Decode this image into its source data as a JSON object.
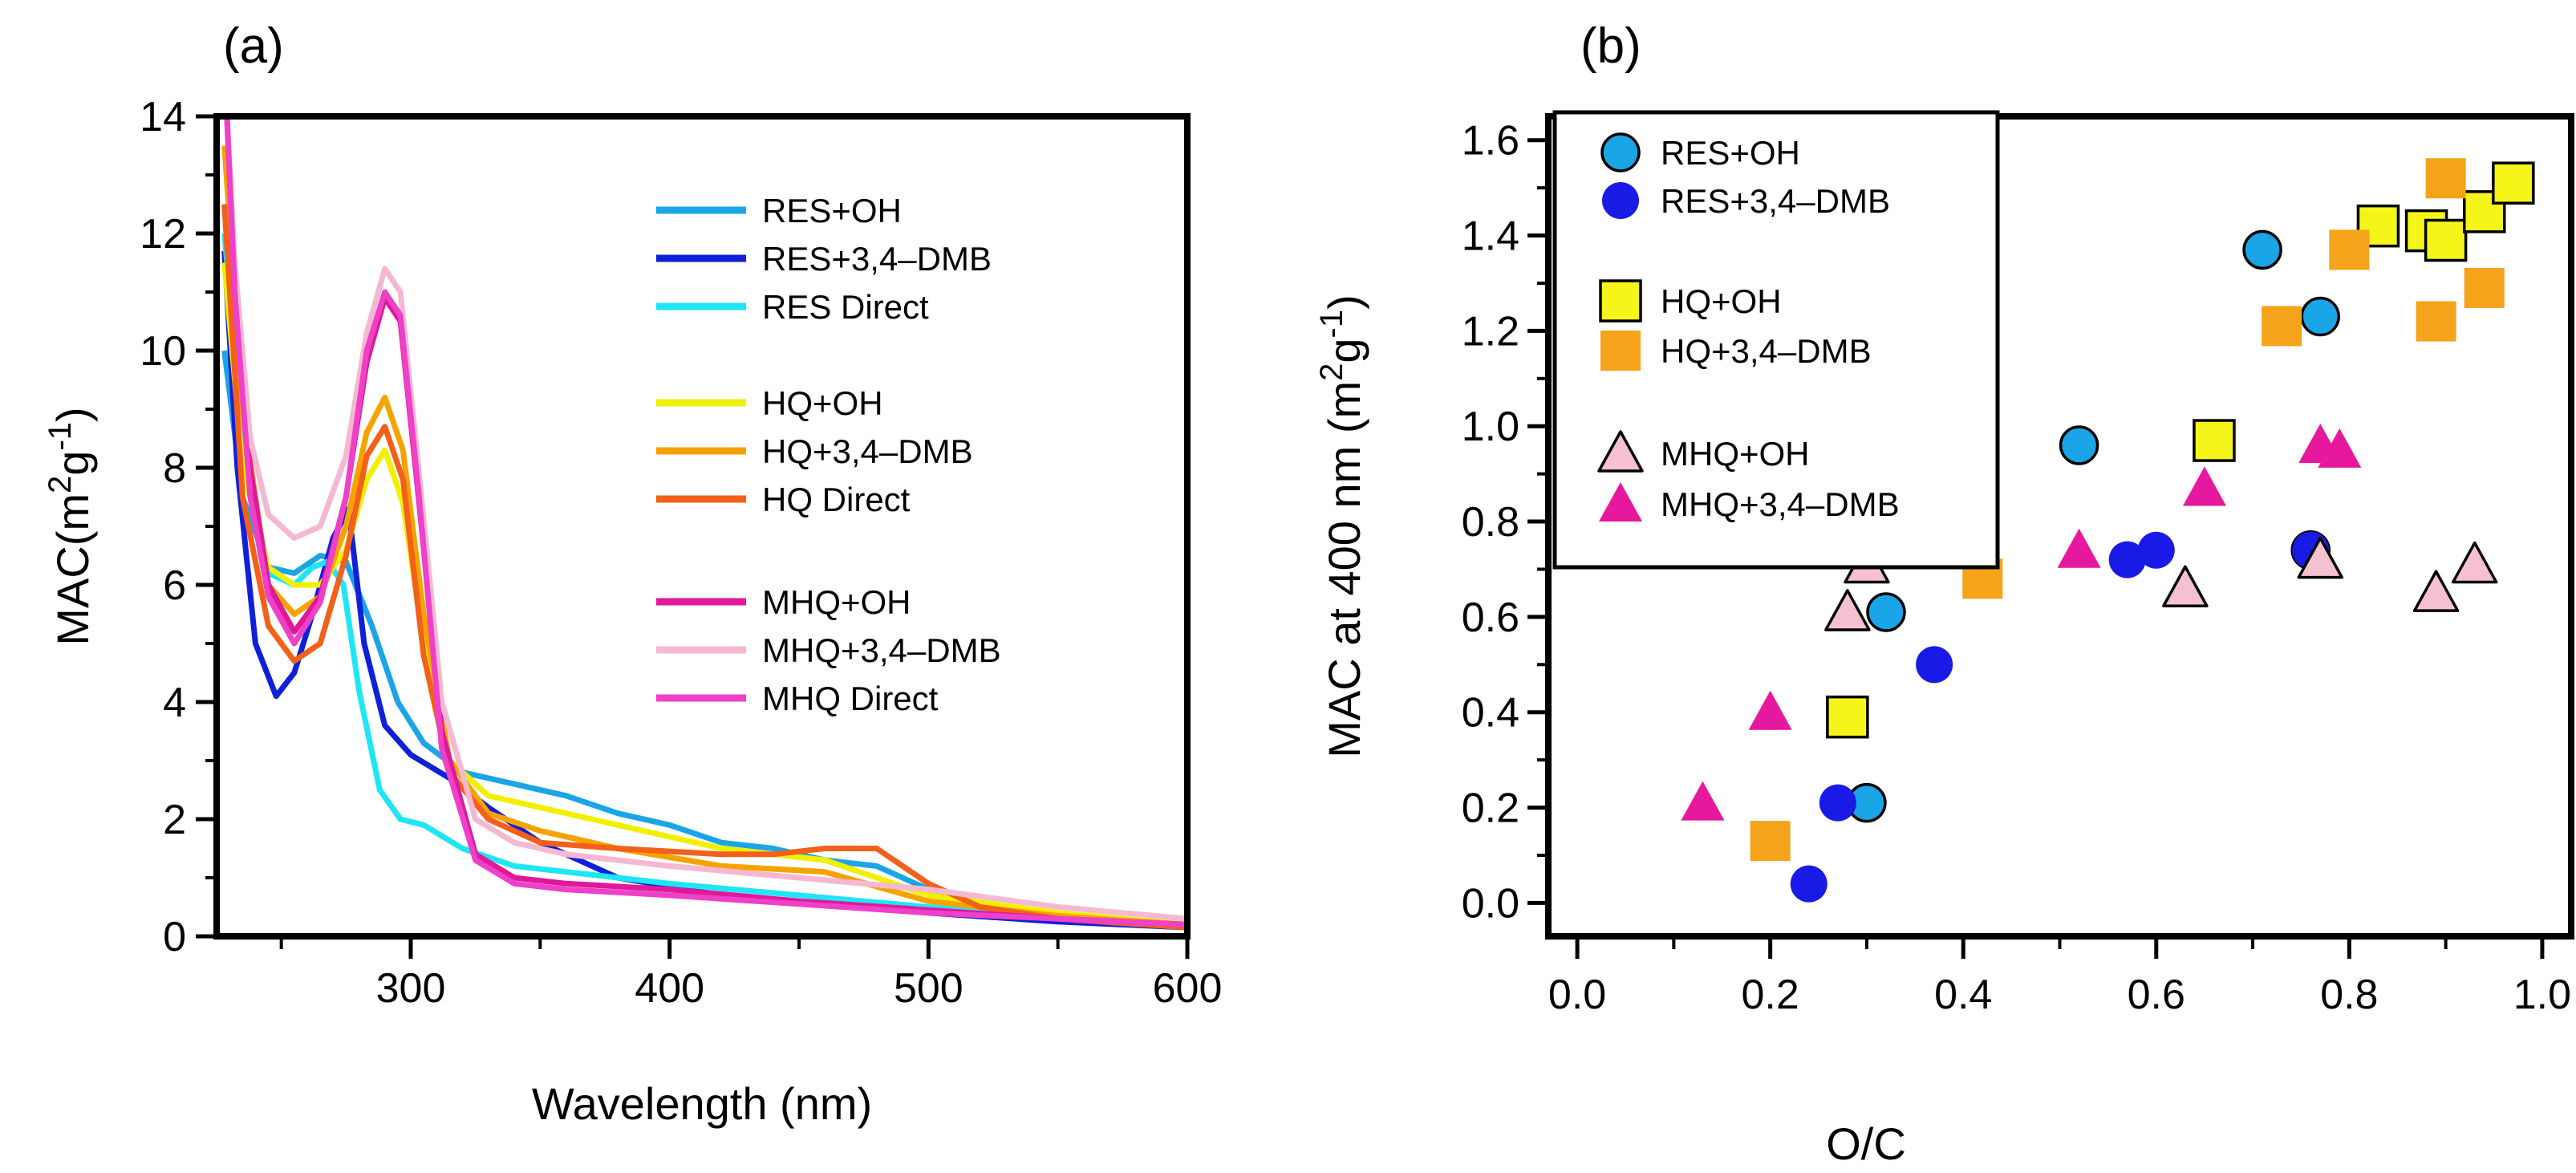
{
  "chart_data": [
    {
      "type": "line",
      "panel_label": "(a)",
      "xlabel": "Wavelength (nm)",
      "ylabel_prefix": "MAC(m",
      "ylabel_sup1": "2",
      "ylabel_mid": "g",
      "ylabel_sup2": "-1",
      "ylabel_suffix": ")",
      "xlim": [
        225,
        600
      ],
      "ylim": [
        0,
        14
      ],
      "x_ticks": [
        300,
        400,
        500,
        600
      ],
      "y_ticks": [
        0,
        2,
        4,
        6,
        8,
        10,
        12,
        14
      ],
      "legend_position": "upper-right",
      "series": [
        {
          "name": "RES+OH",
          "color": "#1aa5e6",
          "x": [
            228,
            235,
            245,
            255,
            265,
            275,
            285,
            295,
            305,
            320,
            340,
            360,
            380,
            400,
            420,
            440,
            460,
            480,
            500,
            520,
            550,
            600
          ],
          "y": [
            10.0,
            7.5,
            6.3,
            6.2,
            6.5,
            6.4,
            5.3,
            4.0,
            3.3,
            2.8,
            2.6,
            2.4,
            2.1,
            1.9,
            1.6,
            1.5,
            1.3,
            1.2,
            0.8,
            0.5,
            0.35,
            0.2
          ]
        },
        {
          "name": "RES+3,4–DMB",
          "color": "#1020d8",
          "x": [
            228,
            233,
            240,
            248,
            255,
            262,
            270,
            276,
            282,
            290,
            300,
            315,
            330,
            350,
            380,
            420,
            460,
            500,
            550,
            600
          ],
          "y": [
            11.7,
            8.0,
            5.0,
            4.1,
            4.5,
            5.5,
            6.8,
            7.3,
            5.0,
            3.6,
            3.1,
            2.7,
            2.2,
            1.6,
            1.0,
            0.7,
            0.55,
            0.4,
            0.25,
            0.15
          ]
        },
        {
          "name": "RES Direct",
          "color": "#1ee6f5",
          "x": [
            228,
            235,
            245,
            255,
            262,
            268,
            274,
            280,
            288,
            296,
            305,
            320,
            340,
            360,
            400,
            450,
            500,
            550,
            600
          ],
          "y": [
            12.0,
            8.5,
            6.2,
            6.0,
            6.3,
            6.4,
            6.0,
            4.2,
            2.5,
            2.0,
            1.9,
            1.5,
            1.2,
            1.1,
            0.9,
            0.7,
            0.5,
            0.35,
            0.2
          ]
        },
        {
          "name": "HQ+OH",
          "color": "#f0f000",
          "x": [
            228,
            235,
            245,
            255,
            265,
            275,
            283,
            290,
            297,
            305,
            315,
            330,
            350,
            380,
            420,
            460,
            500,
            550,
            600
          ],
          "y": [
            11.5,
            8.0,
            6.3,
            6.0,
            6.0,
            6.6,
            7.8,
            8.3,
            7.4,
            5.0,
            3.0,
            2.4,
            2.2,
            1.9,
            1.5,
            1.3,
            0.7,
            0.4,
            0.2
          ]
        },
        {
          "name": "HQ+3,4–DMB",
          "color": "#f5a300",
          "x": [
            228,
            235,
            245,
            255,
            265,
            275,
            283,
            290,
            297,
            305,
            315,
            330,
            350,
            380,
            420,
            460,
            500,
            550,
            600
          ],
          "y": [
            13.5,
            9.0,
            6.0,
            5.5,
            5.8,
            7.0,
            8.6,
            9.2,
            8.3,
            5.5,
            3.0,
            2.1,
            1.8,
            1.5,
            1.2,
            1.1,
            0.6,
            0.35,
            0.2
          ]
        },
        {
          "name": "HQ Direct",
          "color": "#f2601a",
          "x": [
            228,
            235,
            245,
            255,
            265,
            275,
            283,
            290,
            297,
            305,
            315,
            330,
            350,
            380,
            420,
            440,
            460,
            480,
            500,
            520,
            550,
            600
          ],
          "y": [
            12.5,
            7.5,
            5.3,
            4.7,
            5.0,
            6.5,
            8.2,
            8.7,
            7.8,
            4.8,
            2.8,
            2.0,
            1.6,
            1.5,
            1.4,
            1.4,
            1.5,
            1.5,
            0.9,
            0.5,
            0.3,
            0.15
          ]
        },
        {
          "name": "MHQ+OH",
          "color": "#e0189a",
          "x": [
            229,
            232,
            238,
            245,
            255,
            265,
            275,
            283,
            290,
            296,
            303,
            312,
            325,
            340,
            360,
            400,
            450,
            500,
            550,
            600
          ],
          "y": [
            14.0,
            11.0,
            8.0,
            6.0,
            5.2,
            5.8,
            7.5,
            9.8,
            10.9,
            10.5,
            7.5,
            3.5,
            1.4,
            1.0,
            0.9,
            0.8,
            0.6,
            0.45,
            0.3,
            0.2
          ]
        },
        {
          "name": "MHQ+3,4–DMB",
          "color": "#f5b8d2",
          "x": [
            229,
            232,
            238,
            245,
            255,
            265,
            275,
            283,
            290,
            296,
            303,
            312,
            325,
            340,
            360,
            400,
            450,
            500,
            550,
            600
          ],
          "y": [
            14.0,
            11.5,
            8.5,
            7.2,
            6.8,
            7.0,
            8.2,
            10.3,
            11.4,
            11.0,
            8.0,
            4.0,
            2.0,
            1.6,
            1.4,
            1.2,
            1.0,
            0.8,
            0.5,
            0.3
          ]
        },
        {
          "name": "MHQ Direct",
          "color": "#ee40c8",
          "x": [
            229,
            232,
            238,
            245,
            255,
            265,
            275,
            283,
            290,
            296,
            303,
            312,
            325,
            340,
            360,
            400,
            450,
            500,
            550,
            600
          ],
          "y": [
            14.0,
            11.0,
            7.5,
            5.8,
            5.0,
            5.7,
            7.5,
            10.0,
            11.0,
            10.6,
            7.6,
            3.2,
            1.3,
            0.9,
            0.8,
            0.7,
            0.55,
            0.4,
            0.3,
            0.2
          ]
        }
      ]
    },
    {
      "type": "scatter",
      "panel_label": "(b)",
      "xlabel": "O/C",
      "ylabel_prefix": "MAC at 400 nm (m",
      "ylabel_sup1": "2",
      "ylabel_mid": "g",
      "ylabel_sup2": "-1",
      "ylabel_suffix": ")",
      "xlim": [
        -0.03,
        1.03
      ],
      "ylim": [
        -0.07,
        1.65
      ],
      "x_ticks": [
        0.0,
        0.2,
        0.4,
        0.6,
        0.8,
        1.0
      ],
      "x_tick_labels": [
        "0.0",
        "0.2",
        "0.4",
        "0.6",
        "0.8",
        "1.0"
      ],
      "y_ticks": [
        0.0,
        0.2,
        0.4,
        0.6,
        0.8,
        1.0,
        1.2,
        1.4,
        1.6
      ],
      "y_tick_labels": [
        "0.0",
        "0.2",
        "0.4",
        "0.6",
        "0.8",
        "1.0",
        "1.2",
        "1.4",
        "1.6"
      ],
      "legend_position": "upper-left",
      "series": [
        {
          "name": "RES+OH",
          "marker": "circle",
          "color": "#1aa5e6",
          "outline": true,
          "x": [
            0.3,
            0.32,
            0.52,
            0.71,
            0.77,
            0.76
          ],
          "y": [
            0.21,
            0.61,
            0.96,
            1.37,
            1.23,
            0.74
          ]
        },
        {
          "name": "RES+3,4–DMB",
          "marker": "circle",
          "color": "#1a1ae6",
          "outline": false,
          "x": [
            0.24,
            0.27,
            0.37,
            0.57,
            0.6,
            0.76
          ],
          "y": [
            0.04,
            0.21,
            0.5,
            0.72,
            0.74,
            0.74
          ]
        },
        {
          "name": "HQ+OH",
          "marker": "square",
          "color": "#f5f51a",
          "outline": true,
          "x": [
            0.28,
            0.66,
            0.83,
            0.88,
            0.9,
            0.94,
            0.97
          ],
          "y": [
            0.39,
            0.97,
            1.42,
            1.41,
            1.39,
            1.45,
            1.51
          ]
        },
        {
          "name": "HQ+3,4–DMB",
          "marker": "square",
          "color": "#f5a31a",
          "outline": false,
          "x": [
            0.2,
            0.42,
            0.73,
            0.8,
            0.89,
            0.9,
            0.94
          ],
          "y": [
            0.13,
            0.68,
            1.21,
            1.37,
            1.22,
            1.52,
            1.29
          ]
        },
        {
          "name": "MHQ+OH",
          "marker": "triangle",
          "color": "#f5c0cf",
          "outline": true,
          "x": [
            0.28,
            0.3,
            0.63,
            0.77,
            0.89,
            0.93
          ],
          "y": [
            0.61,
            0.71,
            0.66,
            0.72,
            0.65,
            0.71
          ]
        },
        {
          "name": "MHQ+3,4–DMB",
          "marker": "triangle",
          "color": "#e6189e",
          "outline": false,
          "x": [
            0.13,
            0.2,
            0.52,
            0.65,
            0.77,
            0.79
          ],
          "y": [
            0.21,
            0.4,
            0.74,
            0.87,
            0.96,
            0.95
          ]
        }
      ]
    }
  ]
}
